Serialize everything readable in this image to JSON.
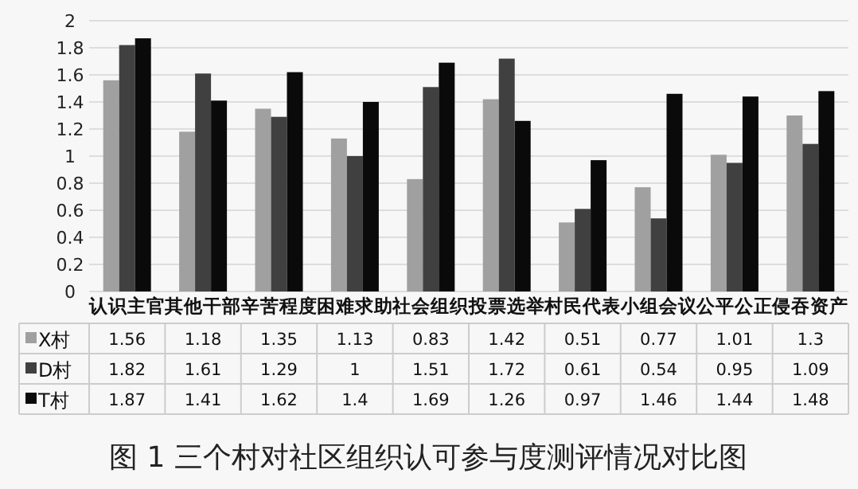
{
  "chart_data": {
    "type": "bar",
    "title": "图 1 三个村对社区组织认可参与度测评情况对比图",
    "categories": [
      "认识主官",
      "其他干部",
      "辛苦程度",
      "困难求助",
      "社会组织",
      "投票选举",
      "村民代表",
      "小组会议",
      "公平公正",
      "侵吞资产"
    ],
    "series": [
      {
        "name": "X村",
        "color": "#a0a0a0",
        "values": [
          1.56,
          1.18,
          1.35,
          1.13,
          0.83,
          1.42,
          0.51,
          0.77,
          1.01,
          1.3
        ]
      },
      {
        "name": "D村",
        "color": "#404040",
        "values": [
          1.82,
          1.61,
          1.29,
          1,
          1.51,
          1.72,
          0.61,
          0.54,
          0.95,
          1.09
        ]
      },
      {
        "name": "T村",
        "color": "#0a0a0a",
        "values": [
          1.87,
          1.41,
          1.62,
          1.4,
          1.69,
          1.26,
          0.97,
          1.46,
          1.44,
          1.48
        ]
      }
    ],
    "ylim": [
      0,
      2
    ],
    "yticks": [
      0,
      0.2,
      0.4,
      0.6,
      0.8,
      1,
      1.2,
      1.4,
      1.6,
      1.8,
      2
    ],
    "grid": "y",
    "data_labels": true,
    "legend": "bottom"
  }
}
